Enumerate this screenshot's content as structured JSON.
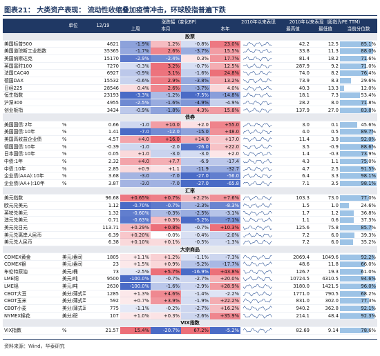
{
  "title": "图表21： 大类资产表现： 流动性收缩叠加疫情冲击，环球股指普遍下跌",
  "table": {
    "header": {
      "unit": "单位",
      "date": "12/19",
      "change_label": "涨跌幅（变化BP）",
      "change_cols": [
        "上周",
        "本月",
        null,
        "本年"
      ],
      "since_label": "2010年以来表现",
      "pe_label": "2010年以来表现（股指为PE TTM）",
      "hist_cols": [
        "最高值",
        "最低值",
        "当前分位数"
      ]
    },
    "sections": [
      {
        "title": "股票",
        "rows": [
          [
            "美国标普500",
            null,
            "4621",
            "-1.9%",
            "1.2%",
            "-0.8%",
            "23.0%",
            "42.2",
            "12.5",
            "85.1%"
          ],
          [
            "美国道琼斯工业指数",
            null,
            "35365",
            "-1.7%",
            "2.6%",
            "-3.7%",
            "15.5%",
            "33.8",
            "11.3",
            "88.0%"
          ],
          [
            "美国纳斯达克",
            null,
            "15170",
            "-2.9%",
            "-2.4%",
            "0.3%",
            "17.7%",
            "81.4",
            "18.2",
            "71.6%"
          ],
          [
            "英国富时100",
            null,
            "7270",
            "-0.3%",
            "3.2%",
            "-0.7%",
            "12.5%",
            "287.9",
            "9.2",
            "71.0%"
          ],
          [
            "法国CAC40",
            null,
            "6927",
            "-0.9%",
            "3.1%",
            "-1.6%",
            "24.8%",
            "74.0",
            "8.2",
            "76.4%"
          ],
          [
            "德国DAX",
            null,
            "15532",
            "-0.6%",
            "2.9%",
            "-3.8%",
            "13.2%",
            "73.9",
            "8.3",
            "29.6%"
          ],
          [
            "日经225",
            null,
            "28546",
            "0.4%",
            "2.6%",
            "-3.7%",
            "4.0%",
            "40.3",
            "13.3",
            "12.0%"
          ],
          [
            "恒生指数",
            null,
            "23193",
            "-3.3%",
            "-1.2%",
            "-7.5%",
            "-14.8%",
            "18.1",
            "7.3",
            "53.4%"
          ],
          [
            "沪深300",
            null,
            "4955",
            "-2.5%",
            "-1.6%",
            "-4.9%",
            "-4.9%",
            "28.2",
            "8.0",
            "71.8%"
          ],
          [
            "创业板指",
            null,
            "3434",
            "-0.9%",
            "-1.8%",
            "4.3%",
            "15.8%",
            "137.9",
            "27.0",
            "83.8%"
          ]
        ]
      },
      {
        "title": "债券",
        "rows": [
          [
            "美国国债:2年",
            "%",
            "0.66",
            "-1.0",
            "+10.0",
            "+2.0",
            "+55.0",
            "3.0",
            "0.1",
            "45.6%"
          ],
          [
            "美国国债:10年",
            "%",
            "1.41",
            "-7.0",
            "-12.0",
            "-15.0",
            "+48.0",
            "4.0",
            "0.5",
            "89.7%"
          ],
          [
            "美国高收益企业债",
            "%",
            "4.57",
            "+4.0",
            "+16.0",
            "+14.0",
            "+17.0",
            "11.4",
            "3.9",
            "92.0%"
          ],
          [
            "德国国债:10年",
            "%",
            "-0.39",
            "-1.0",
            "-2.0",
            "-26.0",
            "+22.0",
            "3.5",
            "-0.9",
            "88.6%"
          ],
          [
            "日本国债:10年",
            "%",
            "0.05",
            "+1.0",
            "-3.0",
            "-3.0",
            "+2.0",
            "1.4",
            "-0.3",
            "73.9%"
          ],
          [
            "中债:1年",
            "%",
            "2.32",
            "+4.0",
            "+7.7",
            "-6.9",
            "-17.4",
            "4.3",
            "1.1",
            "75.0%"
          ],
          [
            "中债:10年",
            "%",
            "2.85",
            "+0.9",
            "+1.1",
            "-11.9",
            "-32.7",
            "4.7",
            "2.5",
            "91.5%"
          ],
          [
            "企业债(AAA):10年",
            "%",
            "3.68",
            "-3.0",
            "-7.0",
            "-27.0",
            "-56.0",
            "6.4",
            "3.3",
            "98.1%"
          ],
          [
            "企业债(AA+):10年",
            "%",
            "3.87",
            "-3.0",
            "-7.0",
            "-27.0",
            "-65.8",
            "7.1",
            "3.5",
            "98.1%"
          ]
        ]
      },
      {
        "title": "汇率",
        "rows": [
          [
            "美元指数",
            null,
            "96.68",
            "+0.65%",
            "+0.7%",
            "+2.2%",
            "+7.6%",
            "103.3",
            "73.0",
            "77.0%"
          ],
          [
            "欧元兑美元",
            null,
            "1.12",
            "-0.70%",
            "-0.7%",
            "-2.3%",
            "-8.3%",
            "1.5",
            "1.0",
            "24.6%"
          ],
          [
            "英镑兑美元",
            null,
            "1.32",
            "-0.60%",
            "-0.3%",
            "-2.5%",
            "-3.1%",
            "1.7",
            "1.2",
            "36.8%"
          ],
          [
            "澳元兑美元",
            null,
            "0.71",
            "-0.63%",
            "+0.3%",
            "-5.2%",
            "-7.1%",
            "1.1",
            "0.6",
            "37.3%"
          ],
          [
            "美元兑日元",
            null,
            "113.71",
            "+0.29%",
            "+0.8%",
            "-0.7%",
            "+10.3%",
            "125.6",
            "75.8",
            "85.7%"
          ],
          [
            "美元兑离岸人民币",
            null,
            "6.39",
            "+0.20%",
            "-0.0%",
            "-0.4%",
            "-2.0%",
            "7.2",
            "6.0",
            "39.3%"
          ],
          [
            "美元兑人民币",
            null,
            "6.38",
            "+0.10%",
            "+0.1%",
            "-0.5%",
            "-1.3%",
            "7.2",
            "6.0",
            "35.2%"
          ]
        ]
      },
      {
        "title": "大宗商品",
        "rows": [
          [
            "COMEX黄金",
            "美元/盎司",
            "1805",
            "+1.1%",
            "+1.2%",
            "-1.1%",
            "-7.3%",
            "2069.4",
            "1049.6",
            "92.2%"
          ],
          [
            "COMEX银",
            "美元/盎司",
            "23",
            "+1.5%",
            "+0.9%",
            "-5.2%",
            "-17.7%",
            "48.6",
            "11.8",
            "66.0%"
          ],
          [
            "布伦特原油",
            "美元/桶",
            "73",
            "-2.5%",
            "+5.7%",
            "-16.9%",
            "+43.8%",
            "126.7",
            "19.3",
            "61.0%"
          ],
          [
            "LME铜",
            "美元/吨",
            "9500",
            "-100.0%",
            "-0.7%",
            "-2.7%",
            "+20.0%",
            "10724.5",
            "4310.5",
            "94.6%"
          ],
          [
            "LME铝",
            "美元/吨",
            "2630",
            "-100.0%",
            "-1.6%",
            "-2.9%",
            "+28.9%",
            "3180.0",
            "1421.5",
            "96.0%"
          ],
          [
            "CBOT大豆",
            "美分/蒲式耳",
            "1285",
            "+1.3%",
            "+4.6%",
            "-1.4%",
            "-2.2%",
            "1771.0",
            "790.5",
            "68.2%"
          ],
          [
            "CBOT玉米",
            "美分/蒲式耳",
            "592",
            "+0.7%",
            "+3.9%",
            "-1.9%",
            "+22.2%",
            "831.0",
            "302.0",
            "77.3%"
          ],
          [
            "CBOT小麦",
            "美分/蒲式耳",
            "775",
            "-1.1%",
            "-0.2%",
            "-2.7%",
            "+16.2%",
            "940.2",
            "362.8",
            "92.1%"
          ],
          [
            "NYMEX棉花",
            "美分/磅",
            "107",
            "+1.0%",
            "+0.3%",
            "-2.6%",
            "+35.9%",
            "214.1",
            "48.4",
            "92.3%"
          ]
        ]
      },
      {
        "title": "VIX指数",
        "rows": [
          [
            "VIX指数",
            "%",
            "21.57",
            "15.4%",
            "-20.7%",
            "67.2%",
            "-5.2%",
            "82.69",
            "9.14",
            "78.6%"
          ]
        ]
      }
    ]
  },
  "source": "资料来源：Wind，华泰研究"
}
